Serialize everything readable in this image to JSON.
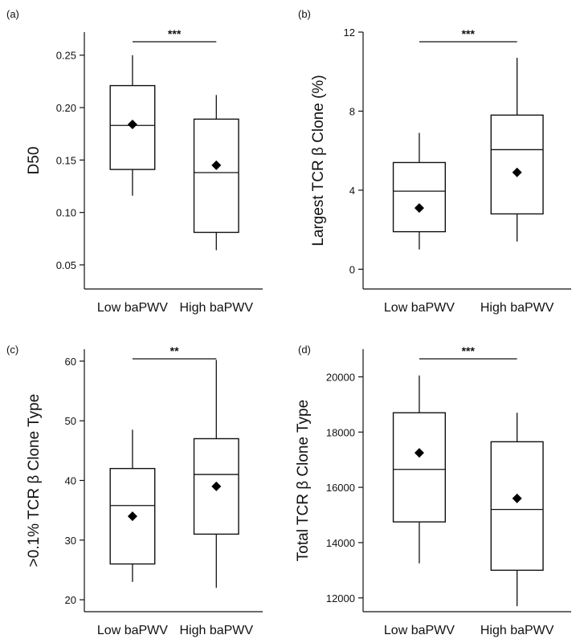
{
  "chart_data": [
    {
      "type": "box",
      "panel_label": "(a)",
      "ylabel": "D50",
      "ylim": [
        0.027,
        0.272
      ],
      "yticks": [
        0.05,
        0.1,
        0.15,
        0.2,
        0.25
      ],
      "ytick_labels": [
        "0.05",
        "0.10",
        "0.15",
        "0.20",
        "0.25"
      ],
      "categories": [
        "Low baPWV",
        "High baPWV"
      ],
      "boxes": [
        {
          "whisker_low": 0.116,
          "q1": 0.141,
          "median": 0.183,
          "q3": 0.221,
          "whisker_high": 0.25,
          "mean": 0.184
        },
        {
          "whisker_low": 0.064,
          "q1": 0.081,
          "median": 0.138,
          "q3": 0.189,
          "whisker_high": 0.212,
          "mean": 0.145
        }
      ],
      "significance": "***"
    },
    {
      "type": "box",
      "panel_label": "(b)",
      "ylabel": "Largest TCR β Clone (%)",
      "ylim": [
        -1,
        12
      ],
      "yticks": [
        0,
        4,
        8,
        12
      ],
      "ytick_labels": [
        "0",
        "4",
        "8",
        "12"
      ],
      "categories": [
        "Low baPWV",
        "High baPWV"
      ],
      "boxes": [
        {
          "whisker_low": 1.0,
          "q1": 1.9,
          "median": 3.95,
          "q3": 5.4,
          "whisker_high": 6.9,
          "mean": 3.1
        },
        {
          "whisker_low": 1.4,
          "q1": 2.8,
          "median": 6.05,
          "q3": 7.8,
          "whisker_high": 10.7,
          "mean": 4.9
        }
      ],
      "significance": "***"
    },
    {
      "type": "box",
      "panel_label": "(c)",
      "ylabel": ">0.1% TCR β Clone Type",
      "ylim": [
        18,
        62
      ],
      "yticks": [
        20,
        30,
        40,
        50,
        60
      ],
      "ytick_labels": [
        "20",
        "30",
        "40",
        "50",
        "60"
      ],
      "categories": [
        "Low baPWV",
        "High baPWV"
      ],
      "boxes": [
        {
          "whisker_low": 23,
          "q1": 26,
          "median": 35.8,
          "q3": 42,
          "whisker_high": 48.5,
          "mean": 34
        },
        {
          "whisker_low": 22,
          "q1": 31,
          "median": 41,
          "q3": 47,
          "whisker_high": 60.2,
          "mean": 39
        }
      ],
      "significance": "**"
    },
    {
      "type": "box",
      "panel_label": "(d)",
      "ylabel": "Total TCR β Clone Type",
      "ylim": [
        11500,
        21000
      ],
      "yticks": [
        12000,
        14000,
        16000,
        18000,
        20000
      ],
      "ytick_labels": [
        "12000",
        "14000",
        "16000",
        "18000",
        "20000"
      ],
      "categories": [
        "Low baPWV",
        "High baPWV"
      ],
      "boxes": [
        {
          "whisker_low": 13250,
          "q1": 14750,
          "median": 16650,
          "q3": 18700,
          "whisker_high": 20050,
          "mean": 17250
        },
        {
          "whisker_low": 11700,
          "q1": 13000,
          "median": 15200,
          "q3": 17650,
          "whisker_high": 18700,
          "mean": 15600
        }
      ],
      "significance": "***"
    }
  ]
}
